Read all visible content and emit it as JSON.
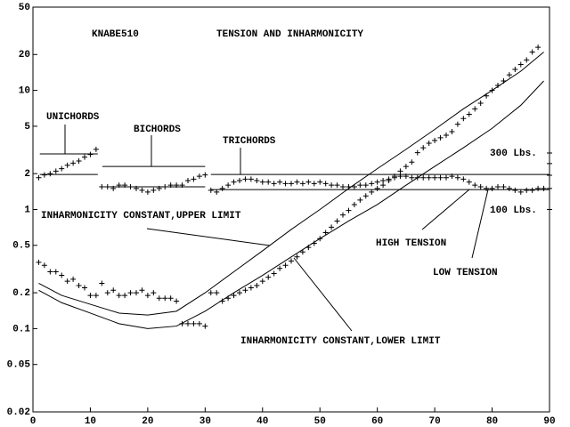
{
  "chart_data": {
    "type": "scatter",
    "title": "KNABE510",
    "subtitle": "TENSION AND INHARMONICITY",
    "log_y": true,
    "xlim": [
      0,
      90
    ],
    "xticks": [
      0,
      10,
      20,
      30,
      40,
      50,
      60,
      70,
      80,
      90
    ],
    "ylim": [
      0.02,
      50
    ],
    "yticks": [
      0.02,
      0.05,
      0.1,
      0.2,
      0.5,
      1,
      2,
      5,
      10,
      20,
      50
    ],
    "series": [
      {
        "marker": "+",
        "color": "#000000",
        "x": [
          1,
          2,
          3,
          4,
          5,
          6,
          7,
          8,
          9,
          10,
          11,
          12,
          13,
          14,
          15,
          16,
          17,
          18,
          19,
          20,
          21,
          22,
          23,
          24,
          25,
          26,
          27,
          28,
          29,
          30,
          31,
          32,
          33,
          34,
          35,
          36,
          37,
          38,
          39,
          40,
          41,
          42,
          43,
          44,
          45,
          46,
          47,
          48,
          49,
          50,
          51,
          52,
          53,
          54,
          55,
          56,
          57,
          58,
          59,
          60,
          61,
          62,
          63,
          64,
          65,
          66,
          67,
          68,
          69,
          70,
          71,
          72,
          73,
          74,
          75,
          76,
          77,
          78,
          79,
          80,
          81,
          82,
          83,
          84,
          85,
          86,
          87,
          88,
          89
        ],
        "values": [
          1.85,
          1.95,
          2.0,
          2.1,
          2.2,
          2.35,
          2.45,
          2.55,
          2.75,
          2.9,
          3.2,
          1.55,
          1.55,
          1.5,
          1.6,
          1.6,
          1.55,
          1.5,
          1.45,
          1.4,
          1.45,
          1.5,
          1.55,
          1.6,
          1.6,
          1.6,
          1.75,
          1.8,
          1.9,
          1.95,
          1.45,
          1.4,
          1.5,
          1.6,
          1.7,
          1.75,
          1.8,
          1.8,
          1.75,
          1.7,
          1.7,
          1.65,
          1.7,
          1.65,
          1.65,
          1.7,
          1.65,
          1.7,
          1.65,
          1.7,
          1.65,
          1.6,
          1.6,
          1.55,
          1.55,
          1.55,
          1.6,
          1.6,
          1.65,
          1.7,
          1.75,
          1.8,
          1.85,
          1.9,
          1.9,
          1.85,
          1.85,
          1.85,
          1.85,
          1.85,
          1.85,
          1.85,
          1.9,
          1.85,
          1.8,
          1.7,
          1.6,
          1.55,
          1.5,
          1.5,
          1.55,
          1.55,
          1.5,
          1.45,
          1.4,
          1.45,
          1.45,
          1.5,
          1.5
        ]
      },
      {
        "marker": "+",
        "color": "#000000",
        "x": [
          1,
          2,
          3,
          4,
          5,
          6,
          7,
          8,
          9,
          10,
          11,
          12,
          13,
          14,
          15,
          16,
          17,
          18,
          19,
          20,
          21,
          22,
          23,
          24,
          25,
          26,
          27,
          28,
          29,
          30,
          31,
          32,
          33,
          34,
          35,
          36,
          37,
          38,
          39,
          40,
          41,
          42,
          43,
          44,
          45,
          46,
          47,
          48,
          49,
          50,
          51,
          52,
          53,
          54,
          55,
          56,
          57,
          58,
          59,
          60,
          61,
          62,
          63,
          64,
          65,
          66,
          67,
          68,
          69,
          70,
          71,
          72,
          73,
          74,
          75,
          76,
          77,
          78,
          79,
          80,
          81,
          82,
          83,
          84,
          85,
          86,
          87,
          88
        ],
        "values": [
          0.36,
          0.34,
          0.3,
          0.3,
          0.28,
          0.25,
          0.26,
          0.23,
          0.22,
          0.19,
          0.19,
          0.24,
          0.2,
          0.21,
          0.19,
          0.19,
          0.2,
          0.2,
          0.21,
          0.19,
          0.2,
          0.18,
          0.18,
          0.18,
          0.17,
          0.11,
          0.11,
          0.11,
          0.11,
          0.105,
          0.2,
          0.2,
          0.17,
          0.18,
          0.19,
          0.2,
          0.21,
          0.22,
          0.23,
          0.25,
          0.27,
          0.29,
          0.32,
          0.34,
          0.37,
          0.4,
          0.44,
          0.48,
          0.52,
          0.57,
          0.64,
          0.71,
          0.8,
          0.9,
          0.98,
          1.1,
          1.2,
          1.3,
          1.4,
          1.5,
          1.6,
          1.75,
          1.9,
          2.1,
          2.3,
          2.5,
          3.0,
          3.3,
          3.6,
          3.8,
          4.0,
          4.2,
          4.5,
          5.2,
          5.8,
          6.3,
          7.0,
          7.8,
          9.0,
          10,
          11,
          12,
          13.5,
          15,
          16.5,
          18,
          21,
          23
        ]
      },
      {
        "marker": "+",
        "color": "#000000",
        "x": [
          90,
          90,
          90,
          90,
          90
        ],
        "values": [
          2.98,
          2.43,
          1.94,
          1.5,
          1.0
        ]
      },
      {
        "style": "line",
        "color": "#000000",
        "x": [
          1,
          5,
          10,
          15,
          20,
          25,
          30,
          35,
          40,
          45,
          50,
          55,
          60,
          65,
          70,
          75,
          80,
          85,
          89
        ],
        "values": [
          0.24,
          0.19,
          0.16,
          0.135,
          0.13,
          0.14,
          0.2,
          0.3,
          0.45,
          0.68,
          1.0,
          1.5,
          2.2,
          3.2,
          4.7,
          7,
          10,
          14.5,
          21
        ]
      },
      {
        "style": "line",
        "color": "#000000",
        "x": [
          1,
          5,
          10,
          15,
          20,
          25,
          30,
          35,
          40,
          45,
          50,
          55,
          60,
          65,
          70,
          75,
          80,
          85,
          89
        ],
        "values": [
          0.21,
          0.165,
          0.135,
          0.11,
          0.1,
          0.105,
          0.14,
          0.2,
          0.28,
          0.4,
          0.57,
          0.8,
          1.1,
          1.6,
          2.3,
          3.3,
          4.8,
          7.5,
          12
        ]
      }
    ],
    "reference_lines": [
      {
        "x": [
          1.2,
          11.3
        ],
        "y": 2.93
      },
      {
        "x": [
          1.2,
          11.3
        ],
        "y": 1.97
      },
      {
        "x": [
          12.1,
          30
        ],
        "y": 2.3
      },
      {
        "x": [
          12.1,
          30
        ],
        "y": 1.55
      },
      {
        "x": [
          31,
          90
        ],
        "y": 1.97
      },
      {
        "x": [
          31,
          90
        ],
        "y": 1.47
      }
    ],
    "annotations": [
      "UNICHORDS",
      "BICHORDS",
      "TRICHORDS",
      "300 Lbs.",
      "100 Lbs.",
      "INHARMONICITY CONSTANT,UPPER LIMIT",
      "HIGH TENSION",
      "LOW TENSION",
      "INHARMONICITY CONSTANT,LOWER LIMIT"
    ]
  }
}
